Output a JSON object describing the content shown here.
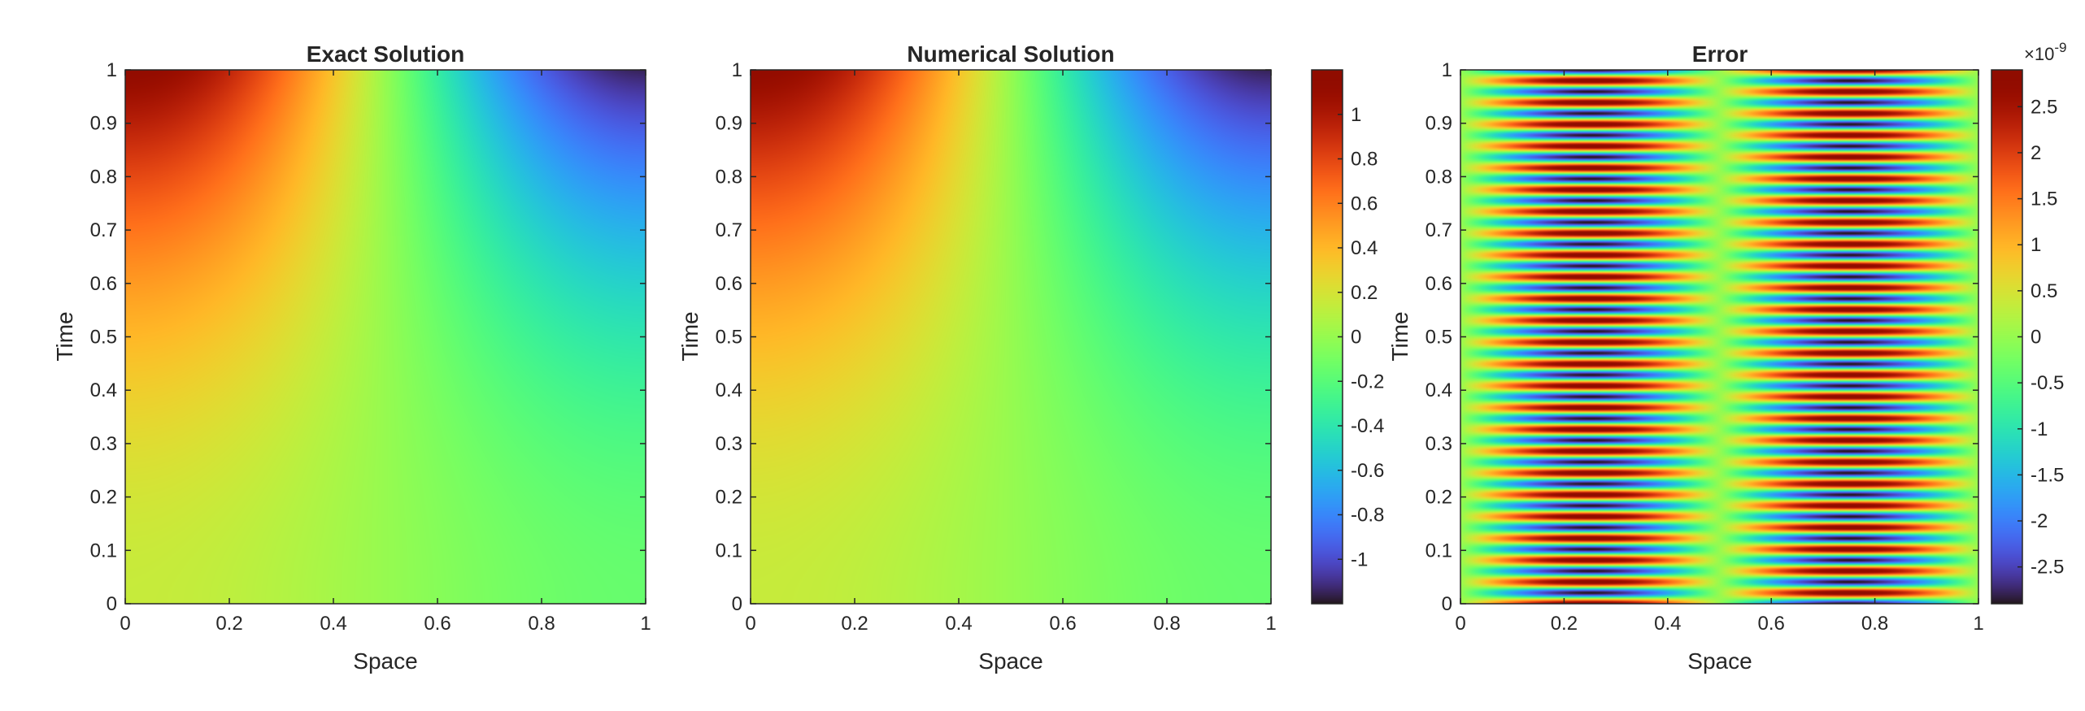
{
  "chart_data": [
    {
      "type": "heatmap",
      "title": "Exact Solution",
      "xlabel": "Space",
      "ylabel": "Time",
      "xlim": [
        0,
        1
      ],
      "ylim": [
        0,
        1
      ],
      "xticks": [
        0,
        0.2,
        0.4,
        0.6,
        0.8,
        1
      ],
      "xtick_labels": [
        "0",
        "0.2",
        "0.4",
        "0.6",
        "0.8",
        "1"
      ],
      "yticks": [
        0,
        0.1,
        0.2,
        0.3,
        0.4,
        0.5,
        0.6,
        0.7,
        0.8,
        0.9,
        1
      ],
      "ytick_labels": [
        "0",
        "0.1",
        "0.2",
        "0.3",
        "0.4",
        "0.5",
        "0.6",
        "0.7",
        "0.8",
        "0.9",
        "1"
      ],
      "colormap": "turbo",
      "clim": [
        -1.2,
        1.2
      ],
      "colorbar": false
    },
    {
      "type": "heatmap",
      "title": "Numerical Solution",
      "xlabel": "Space",
      "ylabel": "Time",
      "xlim": [
        0,
        1
      ],
      "ylim": [
        0,
        1
      ],
      "xticks": [
        0,
        0.2,
        0.4,
        0.6,
        0.8,
        1
      ],
      "xtick_labels": [
        "0",
        "0.2",
        "0.4",
        "0.6",
        "0.8",
        "1"
      ],
      "yticks": [
        0,
        0.1,
        0.2,
        0.3,
        0.4,
        0.5,
        0.6,
        0.7,
        0.8,
        0.9,
        1
      ],
      "ytick_labels": [
        "0",
        "0.1",
        "0.2",
        "0.3",
        "0.4",
        "0.5",
        "0.6",
        "0.7",
        "0.8",
        "0.9",
        "1"
      ],
      "colormap": "turbo",
      "clim": [
        -1.2,
        1.2
      ],
      "colorbar": true,
      "colorbar_ticks": [
        -1,
        -0.8,
        -0.6,
        -0.4,
        -0.2,
        0,
        0.2,
        0.4,
        0.6,
        0.8,
        1
      ],
      "colorbar_tick_labels": [
        "-1",
        "-0.8",
        "-0.6",
        "-0.4",
        "-0.2",
        "0",
        "0.2",
        "0.4",
        "0.6",
        "0.8",
        "1"
      ]
    },
    {
      "type": "heatmap",
      "title": "Error",
      "xlabel": "Space",
      "ylabel": "Time",
      "xlim": [
        0,
        1
      ],
      "ylim": [
        0,
        1
      ],
      "xticks": [
        0,
        0.2,
        0.4,
        0.6,
        0.8,
        1
      ],
      "xtick_labels": [
        "0",
        "0.2",
        "0.4",
        "0.6",
        "0.8",
        "1"
      ],
      "yticks": [
        0,
        0.1,
        0.2,
        0.3,
        0.4,
        0.5,
        0.6,
        0.7,
        0.8,
        0.9,
        1
      ],
      "ytick_labels": [
        "0",
        "0.1",
        "0.2",
        "0.3",
        "0.4",
        "0.5",
        "0.6",
        "0.7",
        "0.8",
        "0.9",
        "1"
      ],
      "colormap": "turbo",
      "clim": [
        -2.9,
        2.9
      ],
      "colorbar": true,
      "colorbar_ticks": [
        -2.5,
        -2,
        -1.5,
        -1,
        -0.5,
        0,
        0.5,
        1,
        1.5,
        2,
        2.5
      ],
      "colorbar_tick_labels": [
        "-2.5",
        "-2",
        "-1.5",
        "-1",
        "-0.5",
        "0",
        "0.5",
        "1",
        "1.5",
        "2",
        "2.5"
      ],
      "colorbar_exponent_base": "×10",
      "colorbar_exponent": "-9",
      "stripe_periods_in_time": 24.5
    }
  ]
}
